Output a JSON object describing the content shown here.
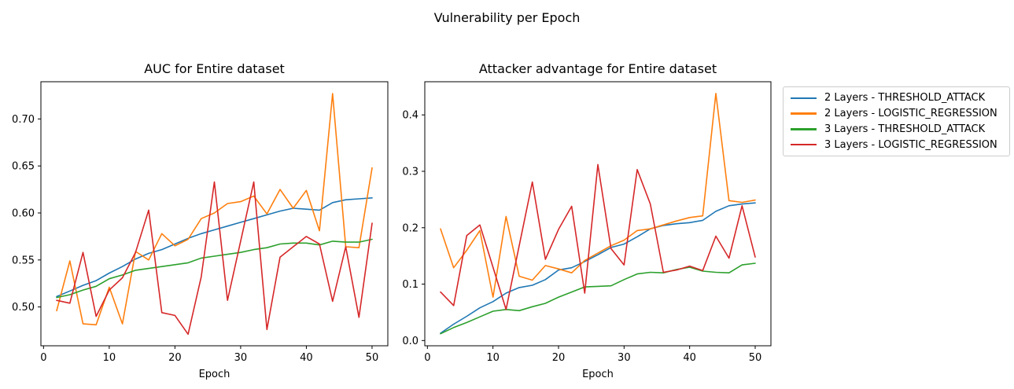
{
  "figure": {
    "suptitle": "Vulnerability per Epoch",
    "background": "#ffffff",
    "text_color": "#000000"
  },
  "legend": {
    "entries": [
      {
        "label": "2 Layers - THRESHOLD_ATTACK",
        "color": "#1f77b4"
      },
      {
        "label": "2 Layers - LOGISTIC_REGRESSION",
        "color": "#ff7f0e"
      },
      {
        "label": "3 Layers - THRESHOLD_ATTACK",
        "color": "#2ca02c"
      },
      {
        "label": "3 Layers - LOGISTIC_REGRESSION",
        "color": "#d62728"
      }
    ],
    "position": "outside-right"
  },
  "chart_data": [
    {
      "type": "line",
      "title": "AUC for Entire dataset",
      "xlabel": "Epoch",
      "ylabel": "",
      "grid": false,
      "x": [
        2,
        4,
        6,
        8,
        10,
        12,
        14,
        16,
        18,
        20,
        22,
        24,
        26,
        28,
        30,
        32,
        34,
        36,
        38,
        40,
        42,
        44,
        46,
        48,
        50
      ],
      "xlim": [
        -0.4,
        52.4
      ],
      "ylim": [
        0.4587,
        0.7396
      ],
      "xticks": [
        0,
        10,
        20,
        30,
        40,
        50
      ],
      "xtick_labels": [
        "0",
        "10",
        "20",
        "30",
        "40",
        "50"
      ],
      "yticks": [
        0.5,
        0.55,
        0.6,
        0.65,
        0.7
      ],
      "ytick_labels": [
        "0.50",
        "0.55",
        "0.60",
        "0.65",
        "0.70"
      ],
      "series": [
        {
          "name": "2 Layers - THRESHOLD_ATTACK",
          "color": "#1f77b4",
          "values": [
            0.511,
            0.517,
            0.523,
            0.528,
            0.536,
            0.543,
            0.551,
            0.557,
            0.561,
            0.567,
            0.573,
            0.578,
            0.582,
            0.586,
            0.59,
            0.594,
            0.598,
            0.602,
            0.605,
            0.604,
            0.603,
            0.611,
            0.614,
            0.615,
            0.616
          ]
        },
        {
          "name": "2 Layers - LOGISTIC_REGRESSION",
          "color": "#ff7f0e",
          "values": [
            0.496,
            0.549,
            0.482,
            0.481,
            0.521,
            0.482,
            0.559,
            0.55,
            0.578,
            0.565,
            0.572,
            0.594,
            0.6,
            0.61,
            0.612,
            0.618,
            0.599,
            0.625,
            0.605,
            0.624,
            0.581,
            0.727,
            0.564,
            0.563,
            0.648
          ]
        },
        {
          "name": "3 Layers - THRESHOLD_ATTACK",
          "color": "#2ca02c",
          "values": [
            0.51,
            0.513,
            0.518,
            0.522,
            0.53,
            0.534,
            0.539,
            0.541,
            0.543,
            0.545,
            0.547,
            0.552,
            0.554,
            0.556,
            0.558,
            0.561,
            0.563,
            0.567,
            0.568,
            0.568,
            0.566,
            0.57,
            0.569,
            0.569,
            0.572
          ]
        },
        {
          "name": "3 Layers - LOGISTIC_REGRESSION",
          "color": "#d62728",
          "values": [
            0.507,
            0.504,
            0.558,
            0.49,
            0.518,
            0.531,
            0.558,
            0.603,
            0.494,
            0.491,
            0.471,
            0.532,
            0.633,
            0.507,
            0.57,
            0.633,
            0.476,
            0.553,
            0.564,
            0.575,
            0.567,
            0.506,
            0.564,
            0.489,
            0.589
          ]
        }
      ]
    },
    {
      "type": "line",
      "title": "Attacker advantage for Entire dataset",
      "xlabel": "Epoch",
      "ylabel": "",
      "grid": false,
      "x": [
        2,
        4,
        6,
        8,
        10,
        12,
        14,
        16,
        18,
        20,
        22,
        24,
        26,
        28,
        30,
        32,
        34,
        36,
        38,
        40,
        42,
        44,
        46,
        48,
        50
      ],
      "xlim": [
        -0.4,
        52.4
      ],
      "ylim": [
        -0.0093,
        0.4588
      ],
      "xticks": [
        0,
        10,
        20,
        30,
        40,
        50
      ],
      "xtick_labels": [
        "0",
        "10",
        "20",
        "30",
        "40",
        "50"
      ],
      "yticks": [
        0.0,
        0.1,
        0.2,
        0.3,
        0.4
      ],
      "ytick_labels": [
        "0.0",
        "0.1",
        "0.2",
        "0.3",
        "0.4"
      ],
      "series": [
        {
          "name": "2 Layers - THRESHOLD_ATTACK",
          "color": "#1f77b4",
          "values": [
            0.013,
            0.029,
            0.043,
            0.058,
            0.069,
            0.084,
            0.094,
            0.098,
            0.108,
            0.125,
            0.129,
            0.14,
            0.152,
            0.165,
            0.171,
            0.184,
            0.198,
            0.204,
            0.207,
            0.209,
            0.213,
            0.229,
            0.239,
            0.242,
            0.244
          ]
        },
        {
          "name": "2 Layers - LOGISTIC_REGRESSION",
          "color": "#ff7f0e",
          "values": [
            0.198,
            0.129,
            0.16,
            0.195,
            0.077,
            0.22,
            0.114,
            0.107,
            0.133,
            0.127,
            0.12,
            0.142,
            0.155,
            0.168,
            0.178,
            0.195,
            0.198,
            0.205,
            0.212,
            0.218,
            0.221,
            0.438,
            0.248,
            0.245,
            0.249
          ]
        },
        {
          "name": "3 Layers - THRESHOLD_ATTACK",
          "color": "#2ca02c",
          "values": [
            0.012,
            0.023,
            0.032,
            0.042,
            0.052,
            0.055,
            0.053,
            0.06,
            0.066,
            0.077,
            0.086,
            0.095,
            0.096,
            0.097,
            0.108,
            0.118,
            0.121,
            0.12,
            0.126,
            0.13,
            0.123,
            0.121,
            0.12,
            0.134,
            0.137
          ]
        },
        {
          "name": "3 Layers - LOGISTIC_REGRESSION",
          "color": "#d62728",
          "values": [
            0.086,
            0.062,
            0.186,
            0.205,
            0.13,
            0.055,
            0.168,
            0.281,
            0.144,
            0.197,
            0.238,
            0.084,
            0.312,
            0.163,
            0.134,
            0.303,
            0.242,
            0.121,
            0.125,
            0.132,
            0.124,
            0.185,
            0.146,
            0.239,
            0.148
          ]
        }
      ]
    }
  ]
}
